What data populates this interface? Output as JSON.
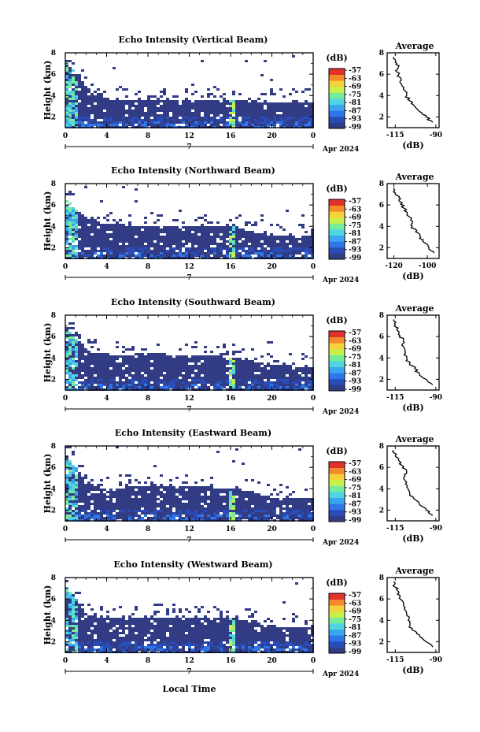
{
  "figure": {
    "xlabel": "Local Time",
    "date_label": "Apr 2024",
    "day_label": "7",
    "colorbar_unit": "(dB)",
    "colorbar_ticks": [
      "-57",
      "-63",
      "-69",
      "-75",
      "-81",
      "-87",
      "-93",
      "-99"
    ],
    "colorbar_colors": [
      "#323c85",
      "#2a4cb8",
      "#2f77e8",
      "#3aa6f0",
      "#4fd6e0",
      "#74ec9a",
      "#c8f04a",
      "#f6d23a",
      "#f58a2a",
      "#e0322a"
    ],
    "profile_title": "Average",
    "profile_unit": "(dB)"
  },
  "chart_data": [
    {
      "type": "heatmap",
      "title": "Echo Intensity (Vertical Beam)",
      "ylabel": "Height (km)",
      "x_ticks": [
        "0",
        "4",
        "8",
        "12",
        "16",
        "20",
        "0"
      ],
      "y_ticks": [
        "2",
        "4",
        "6",
        "8"
      ],
      "xlim": [
        0,
        24
      ],
      "ylim": [
        1,
        8
      ],
      "colorbar_range": [
        -99,
        -57
      ],
      "echo_top_km": [
        [
          0,
          7.2
        ],
        [
          2,
          4.8
        ],
        [
          4,
          3.8
        ],
        [
          8,
          3.6
        ],
        [
          12,
          3.8
        ],
        [
          16,
          3.7
        ],
        [
          20,
          3.5
        ],
        [
          24,
          3.5
        ]
      ],
      "profile": {
        "title": "Average",
        "xlabel": "(dB)",
        "xticks": [
          "-115",
          "-90"
        ],
        "yticks": [
          "2",
          "4",
          "6",
          "8"
        ],
        "xlim": [
          -120,
          -88
        ],
        "points": [
          [
            -92,
            1.5
          ],
          [
            -96,
            2.0
          ],
          [
            -100,
            2.5
          ],
          [
            -103,
            3.0
          ],
          [
            -106,
            3.5
          ],
          [
            -108,
            4.0
          ],
          [
            -110,
            4.6
          ],
          [
            -112,
            5.2
          ],
          [
            -112,
            5.7
          ],
          [
            -114,
            6.2
          ],
          [
            -113,
            6.7
          ],
          [
            -115,
            7.1
          ],
          [
            -116,
            7.6
          ]
        ]
      }
    },
    {
      "type": "heatmap",
      "title": "Echo Intensity (Northward Beam)",
      "ylabel": "Height (km)",
      "x_ticks": [
        "0",
        "4",
        "8",
        "12",
        "16",
        "20",
        "0"
      ],
      "y_ticks": [
        "2",
        "4",
        "6",
        "8"
      ],
      "xlim": [
        0,
        24
      ],
      "ylim": [
        1,
        8
      ],
      "colorbar_range": [
        -99,
        -57
      ],
      "echo_top_km": [
        [
          0,
          6.5
        ],
        [
          2,
          4.8
        ],
        [
          4,
          4.3
        ],
        [
          8,
          4.2
        ],
        [
          12,
          4.2
        ],
        [
          16,
          4.1
        ],
        [
          20,
          3.2
        ],
        [
          24,
          3.2
        ]
      ],
      "profile": {
        "title": "Average",
        "xlabel": "(dB)",
        "xticks": [
          "-120",
          "-100"
        ],
        "yticks": [
          "2",
          "4",
          "6",
          "8"
        ],
        "xlim": [
          -124,
          -93
        ],
        "points": [
          [
            -96,
            1.5
          ],
          [
            -99,
            2.0
          ],
          [
            -102,
            2.5
          ],
          [
            -104,
            3.0
          ],
          [
            -107,
            3.5
          ],
          [
            -109,
            4.0
          ],
          [
            -110,
            4.6
          ],
          [
            -112,
            5.2
          ],
          [
            -114,
            5.7
          ],
          [
            -115,
            6.2
          ],
          [
            -117,
            6.7
          ],
          [
            -119,
            7.1
          ],
          [
            -120,
            7.6
          ]
        ]
      }
    },
    {
      "type": "heatmap",
      "title": "Echo Intensity (Southward Beam)",
      "ylabel": "Height (km)",
      "x_ticks": [
        "0",
        "4",
        "8",
        "12",
        "16",
        "20",
        "0"
      ],
      "y_ticks": [
        "2",
        "4",
        "6",
        "8"
      ],
      "xlim": [
        0,
        24
      ],
      "ylim": [
        1,
        8
      ],
      "colorbar_range": [
        -99,
        -57
      ],
      "echo_top_km": [
        [
          0,
          7.0
        ],
        [
          2,
          4.8
        ],
        [
          4,
          4.4
        ],
        [
          8,
          4.5
        ],
        [
          12,
          4.4
        ],
        [
          16,
          4.2
        ],
        [
          20,
          3.4
        ],
        [
          24,
          3.3
        ]
      ],
      "profile": {
        "title": "Average",
        "xlabel": "(dB)",
        "xticks": [
          "-115",
          "-90"
        ],
        "yticks": [
          "2",
          "4",
          "6",
          "8"
        ],
        "xlim": [
          -120,
          -88
        ],
        "points": [
          [
            -92,
            1.5
          ],
          [
            -96,
            2.0
          ],
          [
            -100,
            2.5
          ],
          [
            -103,
            3.0
          ],
          [
            -106,
            3.5
          ],
          [
            -108,
            4.0
          ],
          [
            -109,
            4.6
          ],
          [
            -111,
            5.2
          ],
          [
            -110,
            5.7
          ],
          [
            -113,
            6.2
          ],
          [
            -114,
            6.7
          ],
          [
            -115,
            7.1
          ],
          [
            -116,
            7.6
          ]
        ]
      }
    },
    {
      "type": "heatmap",
      "title": "Echo Intensity (Eastward Beam)",
      "ylabel": "Height (km)",
      "x_ticks": [
        "0",
        "4",
        "8",
        "12",
        "16",
        "20",
        "0"
      ],
      "y_ticks": [
        "2",
        "4",
        "6",
        "8"
      ],
      "xlim": [
        0,
        24
      ],
      "ylim": [
        1,
        8
      ],
      "colorbar_range": [
        -99,
        -57
      ],
      "echo_top_km": [
        [
          0,
          7.2
        ],
        [
          2,
          4.6
        ],
        [
          4,
          4.2
        ],
        [
          8,
          4.3
        ],
        [
          12,
          4.3
        ],
        [
          16,
          4.2
        ],
        [
          20,
          3.3
        ],
        [
          24,
          3.3
        ]
      ],
      "profile": {
        "title": "Average",
        "xlabel": "(dB)",
        "xticks": [
          "-115",
          "-90"
        ],
        "yticks": [
          "2",
          "4",
          "6",
          "8"
        ],
        "xlim": [
          -120,
          -88
        ],
        "points": [
          [
            -92,
            1.5
          ],
          [
            -96,
            2.0
          ],
          [
            -100,
            2.5
          ],
          [
            -103,
            3.0
          ],
          [
            -106,
            3.5
          ],
          [
            -107,
            4.0
          ],
          [
            -108,
            4.6
          ],
          [
            -109,
            5.2
          ],
          [
            -108,
            5.7
          ],
          [
            -111,
            6.2
          ],
          [
            -113,
            6.7
          ],
          [
            -115,
            7.1
          ],
          [
            -116,
            7.6
          ]
        ]
      }
    },
    {
      "type": "heatmap",
      "title": "Echo Intensity (Westward Beam)",
      "ylabel": "Height (km)",
      "x_ticks": [
        "0",
        "4",
        "8",
        "12",
        "16",
        "20",
        "0"
      ],
      "y_ticks": [
        "2",
        "4",
        "6",
        "8"
      ],
      "xlim": [
        0,
        24
      ],
      "ylim": [
        1,
        8
      ],
      "colorbar_range": [
        -99,
        -57
      ],
      "echo_top_km": [
        [
          0,
          7.2
        ],
        [
          2,
          4.6
        ],
        [
          4,
          4.3
        ],
        [
          8,
          4.4
        ],
        [
          12,
          4.4
        ],
        [
          16,
          4.3
        ],
        [
          20,
          3.6
        ],
        [
          24,
          3.4
        ]
      ],
      "profile": {
        "title": "Average",
        "xlabel": "(dB)",
        "xticks": [
          "-115",
          "-90"
        ],
        "yticks": [
          "2",
          "4",
          "6",
          "8"
        ],
        "xlim": [
          -120,
          -88
        ],
        "points": [
          [
            -92,
            1.5
          ],
          [
            -96,
            2.0
          ],
          [
            -100,
            2.5
          ],
          [
            -103,
            3.0
          ],
          [
            -106,
            3.5
          ],
          [
            -107,
            4.0
          ],
          [
            -108,
            4.6
          ],
          [
            -109,
            5.2
          ],
          [
            -110,
            5.7
          ],
          [
            -112,
            6.2
          ],
          [
            -113,
            6.7
          ],
          [
            -115,
            7.1
          ],
          [
            -116,
            7.6
          ]
        ]
      }
    }
  ]
}
